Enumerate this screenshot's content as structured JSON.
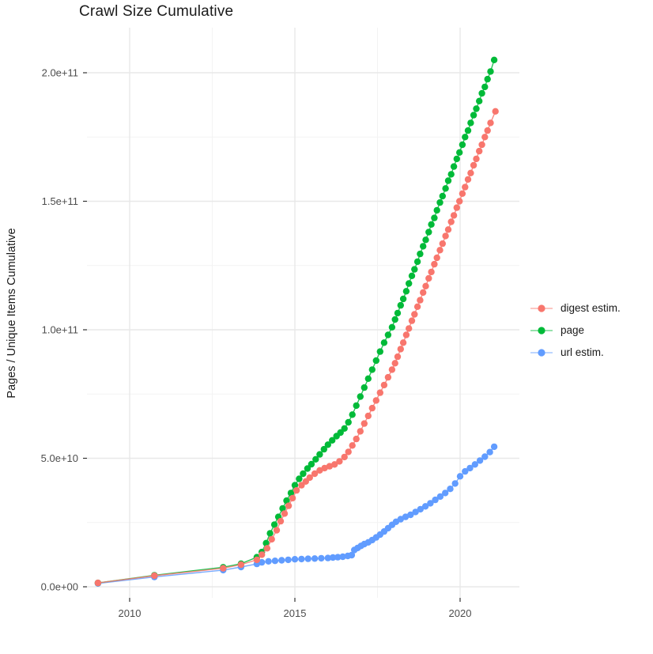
{
  "title": "Crawl Size Cumulative",
  "axes": {
    "y_label": "Pages / Unique Items Cumulative",
    "x_tick_labels": [
      "2010",
      "2015",
      "2020"
    ],
    "y_tick_labels": [
      "0.0e+00",
      "5.0e+10",
      "1.0e+11",
      "1.5e+11",
      "2.0e+11"
    ]
  },
  "legend": [
    {
      "label": "digest estim.",
      "color": "#F8766D"
    },
    {
      "label": "page",
      "color": "#00BA38"
    },
    {
      "label": "url estim.",
      "color": "#619CFF"
    }
  ],
  "colors": {
    "background": "#ffffff",
    "grid_major": "#E8E8E8",
    "grid_minor": "#F3F3F3",
    "tick": "#333333",
    "tick_text": "#4D4D4D",
    "title_text": "#1a1a1a"
  },
  "chart_data": {
    "type": "scatter",
    "title": "Crawl Size Cumulative",
    "xlabel": "",
    "ylabel": "Pages / Unique Items Cumulative",
    "legend_position": "right",
    "grid": true,
    "points_unit": "each point is [year, cumulative count in billions (1e9)]",
    "x_tick_values": [
      2010,
      2015,
      2020
    ],
    "x_minor_values": [
      2012.5,
      2017.5
    ],
    "y_tick_values_e9": [
      0,
      50,
      100,
      150,
      200
    ],
    "y_minor_values_e9": [
      25,
      75,
      125,
      175
    ],
    "x_range": [
      2008.72,
      2021.79
    ],
    "y_range_e9": [
      -4.3,
      217.5
    ],
    "series": [
      {
        "name": "digest estim.",
        "color": "#F8766D",
        "points": [
          [
            2009.04,
            1.5
          ],
          [
            2010.75,
            4.3
          ],
          [
            2012.83,
            7.2
          ],
          [
            2013.37,
            8.6
          ],
          [
            2013.85,
            10.5
          ],
          [
            2014.0,
            12.5
          ],
          [
            2014.16,
            15.0
          ],
          [
            2014.3,
            18.5
          ],
          [
            2014.45,
            22.0
          ],
          [
            2014.57,
            25.5
          ],
          [
            2014.69,
            28.5
          ],
          [
            2014.81,
            31.5
          ],
          [
            2014.93,
            34.5
          ],
          [
            2015.05,
            37.5
          ],
          [
            2015.2,
            39.5
          ],
          [
            2015.33,
            41.0
          ],
          [
            2015.45,
            42.5
          ],
          [
            2015.6,
            44.0
          ],
          [
            2015.75,
            45.3
          ],
          [
            2015.9,
            46.2
          ],
          [
            2016.05,
            46.9
          ],
          [
            2016.2,
            47.6
          ],
          [
            2016.35,
            48.8
          ],
          [
            2016.5,
            50.5
          ],
          [
            2016.62,
            52.5
          ],
          [
            2016.74,
            55.0
          ],
          [
            2016.86,
            57.5
          ],
          [
            2016.98,
            60.5
          ],
          [
            2017.1,
            63.5
          ],
          [
            2017.22,
            66.5
          ],
          [
            2017.34,
            69.5
          ],
          [
            2017.46,
            72.5
          ],
          [
            2017.58,
            75.5
          ],
          [
            2017.7,
            78.5
          ],
          [
            2017.82,
            81.5
          ],
          [
            2017.94,
            84.5
          ],
          [
            2018.03,
            87.0
          ],
          [
            2018.11,
            89.5
          ],
          [
            2018.2,
            92.5
          ],
          [
            2018.28,
            95.0
          ],
          [
            2018.37,
            98.0
          ],
          [
            2018.45,
            100.5
          ],
          [
            2018.54,
            103.5
          ],
          [
            2018.62,
            106.0
          ],
          [
            2018.71,
            109.0
          ],
          [
            2018.79,
            111.5
          ],
          [
            2018.88,
            114.5
          ],
          [
            2018.96,
            117.0
          ],
          [
            2019.05,
            120.0
          ],
          [
            2019.13,
            122.5
          ],
          [
            2019.22,
            125.5
          ],
          [
            2019.3,
            128.0
          ],
          [
            2019.39,
            131.0
          ],
          [
            2019.47,
            133.5
          ],
          [
            2019.56,
            136.5
          ],
          [
            2019.64,
            139.0
          ],
          [
            2019.73,
            142.0
          ],
          [
            2019.81,
            144.5
          ],
          [
            2019.9,
            147.5
          ],
          [
            2019.98,
            150.0
          ],
          [
            2020.07,
            153.0
          ],
          [
            2020.15,
            155.5
          ],
          [
            2020.24,
            158.5
          ],
          [
            2020.32,
            161.0
          ],
          [
            2020.41,
            164.0
          ],
          [
            2020.49,
            166.5
          ],
          [
            2020.58,
            169.5
          ],
          [
            2020.66,
            172.0
          ],
          [
            2020.75,
            175.0
          ],
          [
            2020.83,
            177.5
          ],
          [
            2020.92,
            180.5
          ],
          [
            2021.07,
            185.0
          ]
        ]
      },
      {
        "name": "page",
        "color": "#00BA38",
        "points": [
          [
            2009.04,
            1.5
          ],
          [
            2010.75,
            4.5
          ],
          [
            2012.83,
            7.6
          ],
          [
            2013.37,
            9.0
          ],
          [
            2013.85,
            11.5
          ],
          [
            2014.0,
            13.5
          ],
          [
            2014.13,
            17.0
          ],
          [
            2014.25,
            20.8
          ],
          [
            2014.38,
            24.2
          ],
          [
            2014.5,
            27.2
          ],
          [
            2014.63,
            30.5
          ],
          [
            2014.75,
            33.5
          ],
          [
            2014.88,
            36.5
          ],
          [
            2015.0,
            39.5
          ],
          [
            2015.13,
            42.0
          ],
          [
            2015.25,
            44.0
          ],
          [
            2015.38,
            46.0
          ],
          [
            2015.5,
            47.7
          ],
          [
            2015.63,
            49.6
          ],
          [
            2015.75,
            51.5
          ],
          [
            2015.88,
            53.5
          ],
          [
            2016.0,
            55.3
          ],
          [
            2016.13,
            57.0
          ],
          [
            2016.26,
            58.6
          ],
          [
            2016.38,
            60.0
          ],
          [
            2016.5,
            61.6
          ],
          [
            2016.62,
            64.0
          ],
          [
            2016.74,
            67.0
          ],
          [
            2016.86,
            70.5
          ],
          [
            2016.98,
            74.0
          ],
          [
            2017.1,
            77.5
          ],
          [
            2017.22,
            81.0
          ],
          [
            2017.34,
            84.5
          ],
          [
            2017.46,
            88.0
          ],
          [
            2017.58,
            91.5
          ],
          [
            2017.7,
            95.0
          ],
          [
            2017.82,
            98.0
          ],
          [
            2017.94,
            101.0
          ],
          [
            2018.03,
            104.0
          ],
          [
            2018.11,
            106.5
          ],
          [
            2018.2,
            109.5
          ],
          [
            2018.28,
            112.0
          ],
          [
            2018.37,
            115.0
          ],
          [
            2018.45,
            118.0
          ],
          [
            2018.54,
            121.0
          ],
          [
            2018.62,
            123.5
          ],
          [
            2018.71,
            126.5
          ],
          [
            2018.79,
            129.5
          ],
          [
            2018.88,
            132.5
          ],
          [
            2018.96,
            135.0
          ],
          [
            2019.05,
            138.0
          ],
          [
            2019.13,
            141.0
          ],
          [
            2019.22,
            143.5
          ],
          [
            2019.3,
            146.5
          ],
          [
            2019.39,
            149.5
          ],
          [
            2019.47,
            152.0
          ],
          [
            2019.56,
            155.0
          ],
          [
            2019.64,
            158.0
          ],
          [
            2019.73,
            160.5
          ],
          [
            2019.81,
            163.5
          ],
          [
            2019.9,
            166.5
          ],
          [
            2019.98,
            169.0
          ],
          [
            2020.07,
            172.0
          ],
          [
            2020.15,
            175.0
          ],
          [
            2020.24,
            177.5
          ],
          [
            2020.32,
            180.5
          ],
          [
            2020.41,
            183.5
          ],
          [
            2020.49,
            186.0
          ],
          [
            2020.58,
            189.0
          ],
          [
            2020.66,
            192.0
          ],
          [
            2020.75,
            194.5
          ],
          [
            2020.83,
            197.5
          ],
          [
            2020.92,
            200.5
          ],
          [
            2021.03,
            205.0
          ]
        ]
      },
      {
        "name": "url estim.",
        "color": "#619CFF",
        "points": [
          [
            2009.04,
            1.3
          ],
          [
            2010.75,
            3.8
          ],
          [
            2012.83,
            6.5
          ],
          [
            2013.37,
            7.7
          ],
          [
            2013.85,
            8.9
          ],
          [
            2014.0,
            9.5
          ],
          [
            2014.2,
            9.9
          ],
          [
            2014.4,
            10.1
          ],
          [
            2014.6,
            10.3
          ],
          [
            2014.8,
            10.5
          ],
          [
            2015.0,
            10.7
          ],
          [
            2015.2,
            10.8
          ],
          [
            2015.4,
            10.9
          ],
          [
            2015.6,
            11.0
          ],
          [
            2015.8,
            11.1
          ],
          [
            2016.0,
            11.2
          ],
          [
            2016.15,
            11.4
          ],
          [
            2016.3,
            11.5
          ],
          [
            2016.45,
            11.7
          ],
          [
            2016.6,
            12.0
          ],
          [
            2016.72,
            12.3
          ],
          [
            2016.8,
            14.3
          ],
          [
            2016.9,
            15.1
          ],
          [
            2017.0,
            15.9
          ],
          [
            2017.1,
            16.6
          ],
          [
            2017.22,
            17.3
          ],
          [
            2017.34,
            18.2
          ],
          [
            2017.46,
            19.2
          ],
          [
            2017.58,
            20.3
          ],
          [
            2017.7,
            21.5
          ],
          [
            2017.82,
            22.8
          ],
          [
            2017.94,
            24.1
          ],
          [
            2018.06,
            25.3
          ],
          [
            2018.2,
            26.3
          ],
          [
            2018.35,
            27.2
          ],
          [
            2018.5,
            28.0
          ],
          [
            2018.65,
            29.1
          ],
          [
            2018.8,
            30.2
          ],
          [
            2018.95,
            31.3
          ],
          [
            2019.1,
            32.5
          ],
          [
            2019.25,
            33.8
          ],
          [
            2019.4,
            35.1
          ],
          [
            2019.55,
            36.5
          ],
          [
            2019.7,
            38.1
          ],
          [
            2019.85,
            40.2
          ],
          [
            2020.0,
            43.0
          ],
          [
            2020.15,
            44.9
          ],
          [
            2020.3,
            46.2
          ],
          [
            2020.45,
            47.6
          ],
          [
            2020.6,
            49.1
          ],
          [
            2020.75,
            50.6
          ],
          [
            2020.9,
            52.4
          ],
          [
            2021.03,
            54.5
          ]
        ]
      }
    ]
  }
}
